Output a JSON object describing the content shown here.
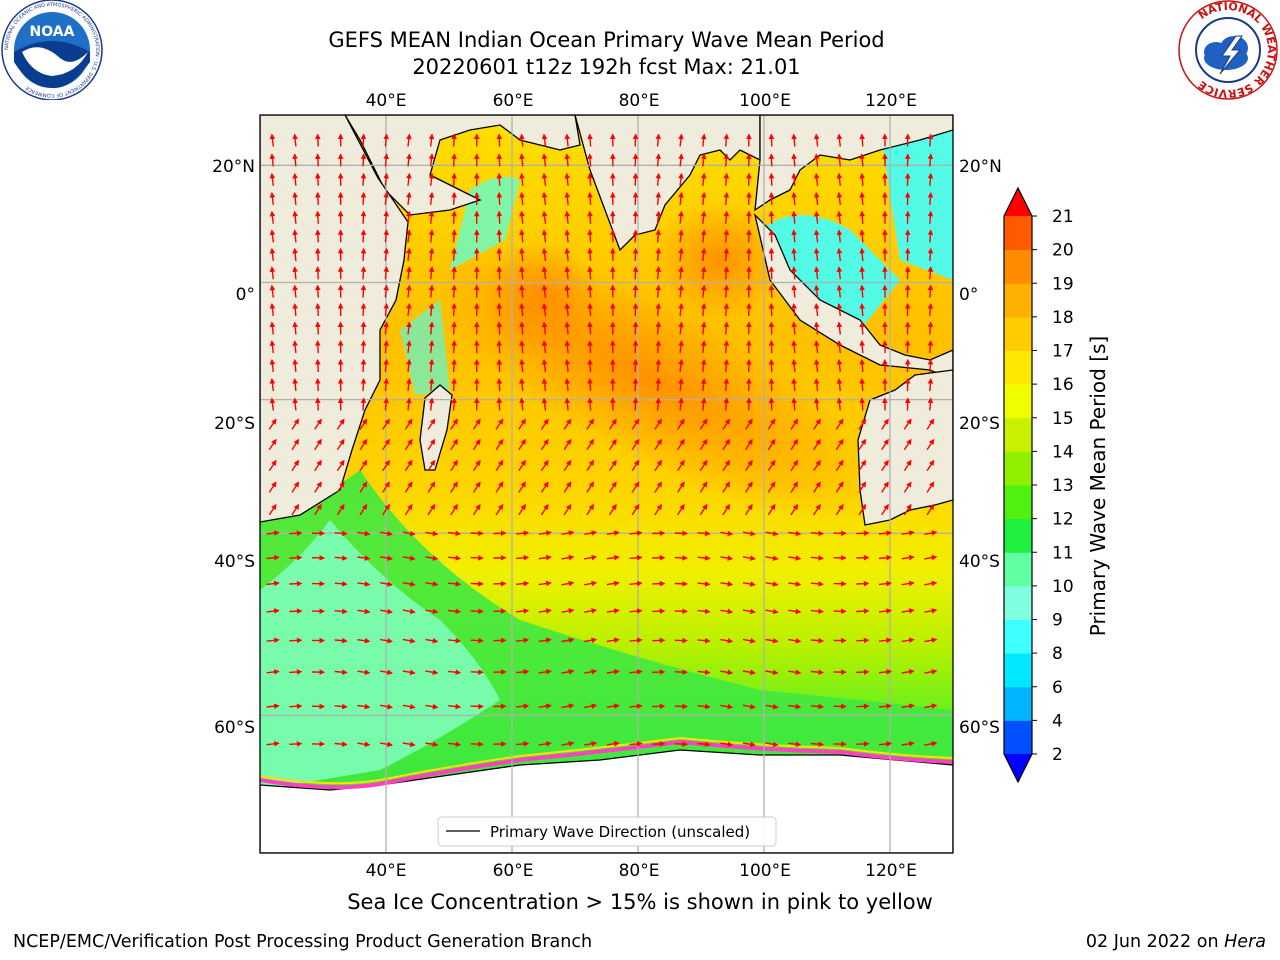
{
  "header": {
    "title_line1": "GEFS MEAN Indian Ocean Primary Wave Mean Period",
    "title_line2": "20220601 t12z 192h fcst   Max: 21.01"
  },
  "logos": {
    "noaa_text": "NOAA",
    "noaa_ring_text": "NATIONAL OCEANIC AND ATMOSPHERIC ADMINISTRATION · U.S. DEPARTMENT OF COMMERCE",
    "nws_ring_text": "NATIONAL WEATHER SERVICE"
  },
  "map": {
    "lon_labels": [
      "40°E",
      "60°E",
      "80°E",
      "100°E",
      "120°E"
    ],
    "lat_labels_left": [
      "20°N",
      "0°",
      "20°S",
      "40°S",
      "60°S"
    ],
    "lat_labels_right": [
      "20°N",
      "0°",
      "20°S",
      "40°S",
      "60°S"
    ],
    "lon_values": [
      40,
      60,
      80,
      100,
      120
    ],
    "lat_values": [
      20,
      0,
      -20,
      -40,
      -60
    ],
    "extent": {
      "lon_min": 20,
      "lon_max": 130,
      "lat_min": -70,
      "lat_max": 28
    },
    "land_color": "#efecdc",
    "ice_color": "#ffffff",
    "arrow_color": "#ff0000",
    "legend_label": "Primary Wave Direction (unscaled)"
  },
  "colorbar": {
    "label": "Primary Wave Mean Period [s]",
    "tick_labels": [
      "2",
      "4",
      "6",
      "8",
      "9",
      "10",
      "11",
      "12",
      "13",
      "14",
      "15",
      "16",
      "17",
      "18",
      "19",
      "20",
      "21"
    ],
    "colors": [
      "#0050ff",
      "#00b4ff",
      "#00e8ff",
      "#40ffff",
      "#80ffe0",
      "#60ffa0",
      "#20f040",
      "#50f010",
      "#90f000",
      "#c8f000",
      "#f0ff00",
      "#ffe800",
      "#ffcc00",
      "#ffb000",
      "#ff8c00",
      "#ff5a00",
      "#ff2a00"
    ],
    "under_color": "#0000ff",
    "over_color": "#ff0000"
  },
  "footer": {
    "ice_note": "Sea Ice Concentration > 15% is shown in pink to yellow",
    "credit": "NCEP/EMC/Verification Post Processing Product Generation Branch",
    "date": "02 Jun 2022 on",
    "machine": "Hera"
  }
}
